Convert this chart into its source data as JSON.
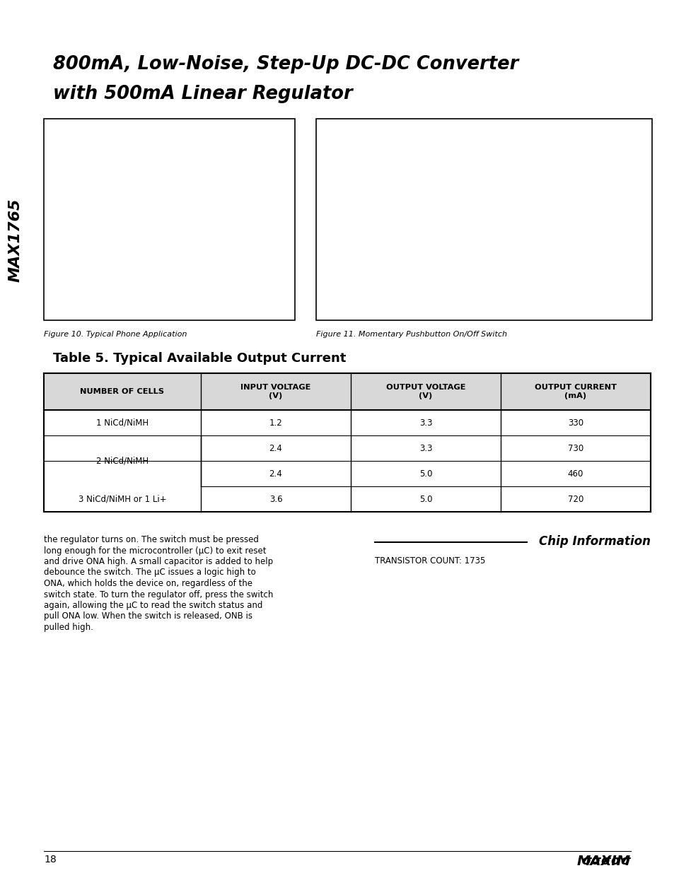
{
  "title_line1": "800mA, Low-Noise, Step-Up DC-DC Converter",
  "title_line2": "with 500mA Linear Regulator",
  "side_label": "MAX1765",
  "fig10_caption": "Figure 10. Typical Phone Application",
  "fig11_caption": "Figure 11. Momentary Pushbutton On/Off Switch",
  "table_title": "Table 5. Typical Available Output Current",
  "col_headers": [
    "NUMBER OF CELLS",
    "INPUT VOLTAGE\n(V)",
    "OUTPUT VOLTAGE\n(V)",
    "OUTPUT CURRENT\n(mA)"
  ],
  "table_rows": [
    {
      "cells": [
        "1 NiCd/NiMH",
        "1.2",
        "3.3",
        "330"
      ],
      "col0_span": 1
    },
    {
      "cells": [
        "2 NiCd/NiMH",
        "2.4",
        "3.3",
        "730"
      ],
      "col0_span": 2
    },
    {
      "cells": [
        null,
        "2.4",
        "5.0",
        "460"
      ],
      "col0_span": 0
    },
    {
      "cells": [
        "3 NiCd/NiMH or 1 Li+",
        "3.6",
        "5.0",
        "720"
      ],
      "col0_span": 1
    }
  ],
  "body_text_lines": [
    "the regulator turns on. The switch must be pressed",
    "long enough for the microcontroller (μC) to exit reset",
    "and drive ONA high. A small capacitor is added to help",
    "debounce the switch. The μC issues a logic high to",
    "ONA, which holds the device on, regardless of the",
    "switch state. To turn the regulator off, press the switch",
    "again, allowing the μC to read the switch status and",
    "pull ONA low. When the switch is released, ONB is",
    "pulled high."
  ],
  "chip_info_title": "Chip Information",
  "chip_info_body": "TRANSISTOR COUNT: 1735",
  "footer_page": "18",
  "bg_color": "#ffffff"
}
